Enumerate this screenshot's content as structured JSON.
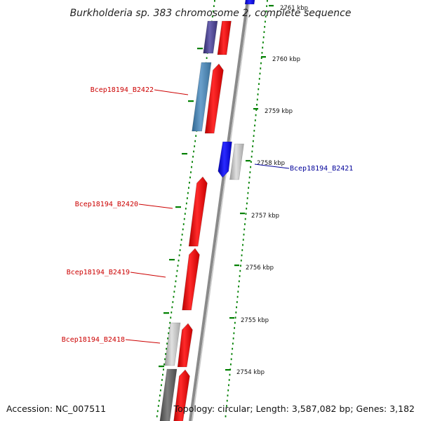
{
  "title": "Burkholderia sp. 383 chromosome 2, complete sequence",
  "footer": {
    "accession": "Accession: NC_007511",
    "topology": "Topology: circular; Length: 3,587,082 bp; Genes: 3,182"
  },
  "ticks": [
    {
      "label": "2761 kbp",
      "kbp": 2761
    },
    {
      "label": "2760 kbp",
      "kbp": 2760
    },
    {
      "label": "2759 kbp",
      "kbp": 2759
    },
    {
      "label": "2758 kbp",
      "kbp": 2758
    },
    {
      "label": "2757 kbp",
      "kbp": 2757
    },
    {
      "label": "2756 kbp",
      "kbp": 2756
    },
    {
      "label": "2755 kbp",
      "kbp": 2755
    },
    {
      "label": "2754 kbp",
      "kbp": 2754
    }
  ],
  "gene_labels": [
    {
      "text": "Bcep18194_B2422",
      "color": "#cc0000"
    },
    {
      "text": "Bcep18194_B2421",
      "color": "#000099"
    },
    {
      "text": "Bcep18194_B2420",
      "color": "#cc0000"
    },
    {
      "text": "Bcep18194_B2419",
      "color": "#cc0000"
    },
    {
      "text": "Bcep18194_B2418",
      "color": "#cc0000"
    }
  ],
  "colors": {
    "forward_cds": "#ff0000",
    "reverse_cds": "#0000ff",
    "steel_blue": "#4682b4",
    "dark_purple": "#483d8b",
    "gray": "#b8b8b8",
    "dark_gray": "#555555",
    "backbone": "#8a8a8a",
    "gc_dots": "#008000"
  }
}
